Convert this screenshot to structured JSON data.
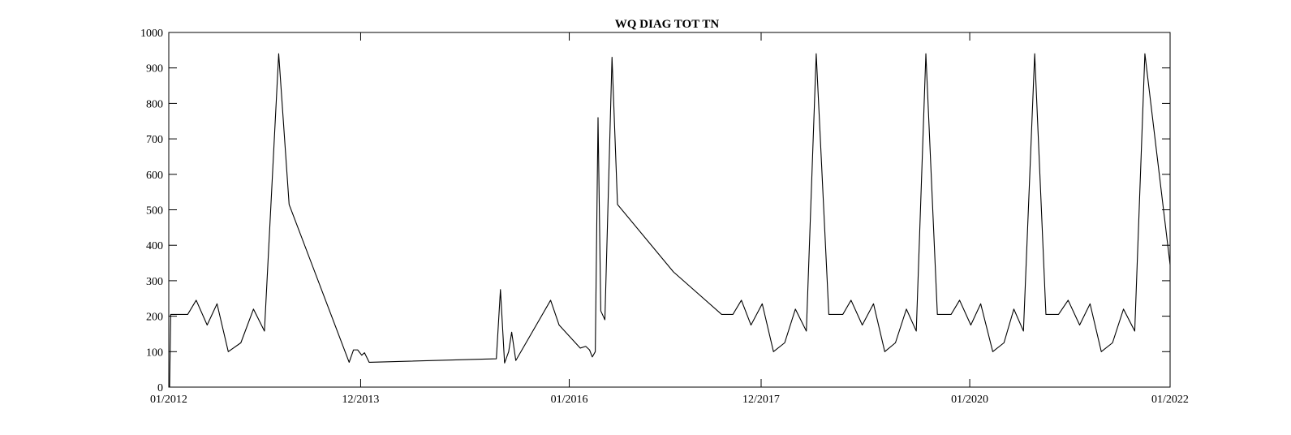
{
  "chart_data": {
    "type": "line",
    "title": "WQ DIAG TOT TN",
    "xlabel": "",
    "ylabel": "",
    "ylim": [
      0,
      1000
    ],
    "xlim": [
      "2012-01-01",
      "2022-01-01"
    ],
    "grid": false,
    "yticks": [
      0,
      100,
      200,
      300,
      400,
      500,
      600,
      700,
      800,
      900,
      1000
    ],
    "xticks": [
      {
        "date": "2012-01-01",
        "label": "01/2012"
      },
      {
        "date": "2013-12-01",
        "label": "12/2013"
      },
      {
        "date": "2016-01-01",
        "label": "01/2016"
      },
      {
        "date": "2017-12-01",
        "label": "12/2017"
      },
      {
        "date": "2020-01-01",
        "label": "01/2020"
      },
      {
        "date": "2022-01-01",
        "label": "01/2022"
      }
    ],
    "series": [
      {
        "color": "#000000",
        "points": [
          [
            "2012-01-04",
            0
          ],
          [
            "2012-01-08",
            205
          ],
          [
            "2012-03-10",
            205
          ],
          [
            "2012-04-10",
            245
          ],
          [
            "2012-05-20",
            175
          ],
          [
            "2012-06-25",
            235
          ],
          [
            "2012-08-05",
            100
          ],
          [
            "2012-09-20",
            125
          ],
          [
            "2012-11-05",
            220
          ],
          [
            "2012-12-15",
            158
          ],
          [
            "2013-02-05",
            940
          ],
          [
            "2013-03-15",
            515
          ],
          [
            "2013-10-20",
            70
          ],
          [
            "2013-11-05",
            105
          ],
          [
            "2013-11-20",
            105
          ],
          [
            "2013-12-05",
            90
          ],
          [
            "2013-12-15",
            97
          ],
          [
            "2014-01-01",
            70
          ],
          [
            "2015-04-10",
            80
          ],
          [
            "2015-04-25",
            275
          ],
          [
            "2015-05-10",
            68
          ],
          [
            "2015-05-25",
            100
          ],
          [
            "2015-06-05",
            155
          ],
          [
            "2015-06-20",
            75
          ],
          [
            "2015-10-25",
            245
          ],
          [
            "2015-11-25",
            175
          ],
          [
            "2016-02-10",
            110
          ],
          [
            "2016-03-01",
            115
          ],
          [
            "2016-03-15",
            105
          ],
          [
            "2016-03-25",
            85
          ],
          [
            "2016-04-05",
            100
          ],
          [
            "2016-04-15",
            760
          ],
          [
            "2016-04-25",
            215
          ],
          [
            "2016-05-10",
            190
          ],
          [
            "2016-06-05",
            930
          ],
          [
            "2016-06-25",
            515
          ],
          [
            "2017-01-15",
            325
          ],
          [
            "2017-07-10",
            205
          ],
          [
            "2017-08-20",
            205
          ],
          [
            "2017-09-20",
            245
          ],
          [
            "2017-10-25",
            175
          ],
          [
            "2017-12-05",
            235
          ],
          [
            "2018-01-15",
            100
          ],
          [
            "2018-02-25",
            125
          ],
          [
            "2018-04-05",
            220
          ],
          [
            "2018-05-15",
            158
          ],
          [
            "2018-06-20",
            940
          ],
          [
            "2018-08-05",
            205
          ],
          [
            "2018-09-25",
            205
          ],
          [
            "2018-10-25",
            245
          ],
          [
            "2018-12-05",
            175
          ],
          [
            "2019-01-15",
            235
          ],
          [
            "2019-02-25",
            100
          ],
          [
            "2019-04-05",
            125
          ],
          [
            "2019-05-15",
            220
          ],
          [
            "2019-06-20",
            158
          ],
          [
            "2019-07-25",
            940
          ],
          [
            "2019-09-05",
            205
          ],
          [
            "2019-10-25",
            205
          ],
          [
            "2019-11-25",
            245
          ],
          [
            "2020-01-05",
            175
          ],
          [
            "2020-02-10",
            235
          ],
          [
            "2020-03-25",
            100
          ],
          [
            "2020-05-05",
            125
          ],
          [
            "2020-06-10",
            220
          ],
          [
            "2020-07-15",
            158
          ],
          [
            "2020-08-25",
            940
          ],
          [
            "2020-10-05",
            205
          ],
          [
            "2020-11-20",
            205
          ],
          [
            "2020-12-25",
            245
          ],
          [
            "2021-02-05",
            175
          ],
          [
            "2021-03-15",
            235
          ],
          [
            "2021-04-25",
            100
          ],
          [
            "2021-06-05",
            125
          ],
          [
            "2021-07-15",
            220
          ],
          [
            "2021-08-25",
            158
          ],
          [
            "2021-10-01",
            940
          ],
          [
            "2022-01-01",
            345
          ]
        ]
      }
    ]
  }
}
